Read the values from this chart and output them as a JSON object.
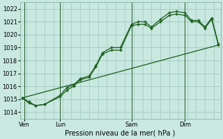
{
  "title": "Pression niveau de la mer( hPa )",
  "background_color": "#c8e8e0",
  "grid_color": "#a0c8c0",
  "line_color": "#1a5c1a",
  "vline_color": "#2a5a2a",
  "ylim": [
    1013.5,
    1022.5
  ],
  "yticks": [
    1014,
    1015,
    1016,
    1017,
    1018,
    1019,
    1020,
    1021,
    1022
  ],
  "day_labels": [
    "Ven",
    "Lun",
    "Sam",
    "Dim"
  ],
  "day_positions": [
    0.5,
    8.5,
    24.5,
    36.5
  ],
  "xlim": [
    -0.5,
    44.5
  ],
  "series1_x": [
    0,
    1.5,
    3,
    5,
    8.5,
    10,
    11.5,
    13,
    15,
    16.5,
    18,
    20,
    22,
    24.5,
    26,
    27.5,
    29,
    31,
    33,
    34.5,
    36.5,
    38,
    39.5,
    41,
    42.5,
    44
  ],
  "series1_y": [
    1015.1,
    1014.7,
    1014.5,
    1014.6,
    1015.2,
    1015.7,
    1016.0,
    1016.5,
    1016.7,
    1017.5,
    1018.5,
    1018.8,
    1018.8,
    1020.7,
    1020.8,
    1020.8,
    1020.5,
    1021.0,
    1021.5,
    1021.6,
    1021.5,
    1021.0,
    1021.0,
    1020.5,
    1021.2,
    1019.2
  ],
  "series2_x": [
    0,
    1.5,
    3,
    5,
    8.5,
    10,
    11.5,
    13,
    15,
    16.5,
    18,
    20,
    22,
    24.5,
    26,
    27.5,
    29,
    31,
    33,
    34.5,
    36.5,
    38,
    39.5,
    41,
    42.5,
    44
  ],
  "series2_y": [
    1015.1,
    1014.8,
    1014.5,
    1014.6,
    1015.3,
    1015.9,
    1016.1,
    1016.6,
    1016.8,
    1017.6,
    1018.6,
    1019.0,
    1019.0,
    1020.8,
    1021.0,
    1021.0,
    1020.6,
    1021.2,
    1021.7,
    1021.8,
    1021.7,
    1021.1,
    1021.1,
    1020.6,
    1021.3,
    1019.3
  ],
  "trend_x": [
    0,
    44
  ],
  "trend_y": [
    1015.1,
    1019.2
  ]
}
